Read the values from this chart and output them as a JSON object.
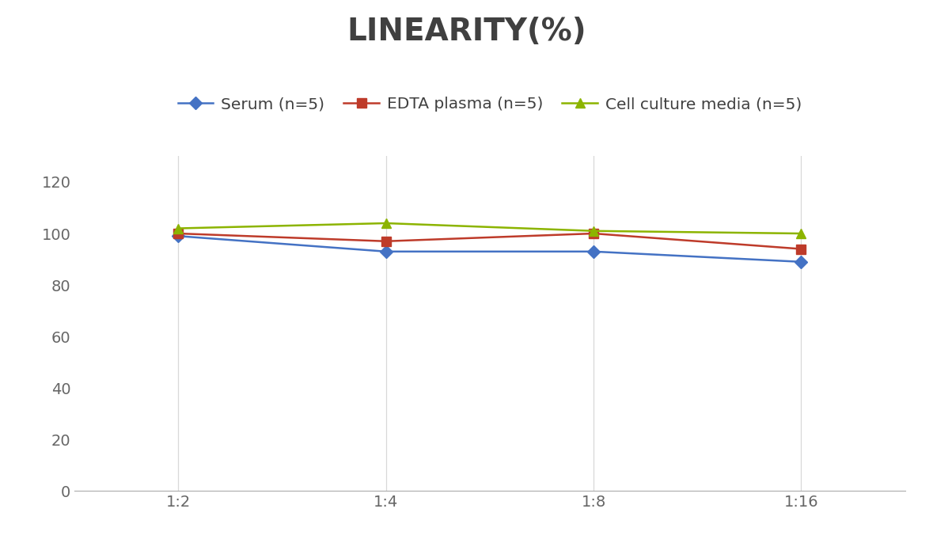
{
  "title": "LINEARITY(%)",
  "x_labels": [
    "1:2",
    "1:4",
    "1:8",
    "1:16"
  ],
  "x_positions": [
    0,
    1,
    2,
    3
  ],
  "series": [
    {
      "name": "Serum (n=5)",
      "values": [
        99,
        93,
        93,
        89
      ],
      "color": "#4472C4",
      "marker": "D",
      "markersize": 8,
      "linewidth": 1.8
    },
    {
      "name": "EDTA plasma (n=5)",
      "values": [
        100,
        97,
        100,
        94
      ],
      "color": "#BE3B2A",
      "marker": "s",
      "markersize": 8,
      "linewidth": 1.8
    },
    {
      "name": "Cell culture media (n=5)",
      "values": [
        102,
        104,
        101,
        100
      ],
      "color": "#8CB400",
      "marker": "^",
      "markersize": 9,
      "linewidth": 1.8
    }
  ],
  "ylim": [
    0,
    130
  ],
  "yticks": [
    0,
    20,
    40,
    60,
    80,
    100,
    120
  ],
  "title_fontsize": 28,
  "title_color": "#404040",
  "legend_fontsize": 14.5,
  "tick_fontsize": 14,
  "background_color": "#ffffff",
  "grid_color": "#d8d8d8",
  "spine_color": "#aaaaaa"
}
